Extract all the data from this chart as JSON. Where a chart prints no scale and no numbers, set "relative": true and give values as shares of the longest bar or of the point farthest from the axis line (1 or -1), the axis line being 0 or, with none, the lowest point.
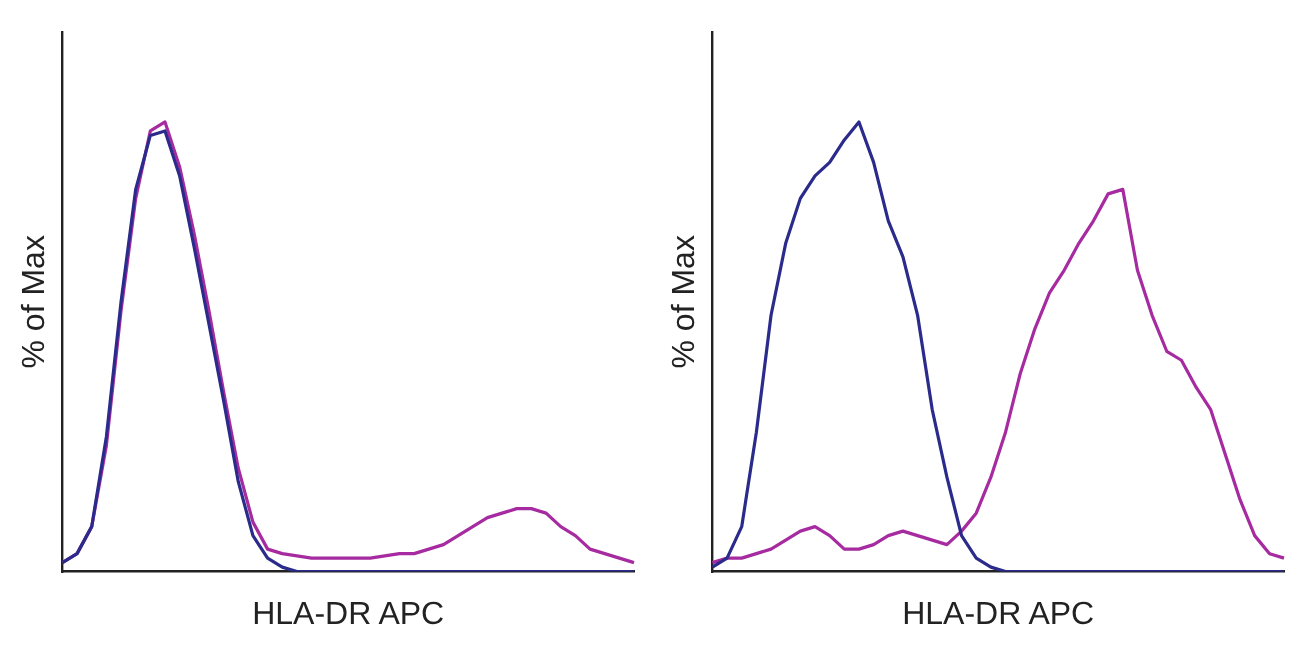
{
  "chart_data": [
    {
      "type": "line",
      "relative": true,
      "ylabel": "% of Max",
      "xlabel": "HLA-DR APC",
      "legend": false,
      "grid": false,
      "marker": "none",
      "tick_labels": false,
      "categories": [
        null,
        null,
        null,
        null,
        null,
        null,
        null,
        null,
        null,
        null,
        null,
        null,
        null,
        null,
        null,
        null,
        null,
        null,
        null,
        null,
        null,
        null,
        null,
        null,
        null,
        null,
        null,
        null,
        null,
        null,
        null,
        null,
        null,
        null,
        null,
        null,
        null,
        null,
        null,
        null
      ],
      "series": [
        {
          "color": "#2b2b8c",
          "values": [
            0.02,
            0.04,
            0.1,
            0.3,
            0.6,
            0.85,
            0.97,
            0.98,
            0.88,
            0.72,
            0.55,
            0.38,
            0.2,
            0.08,
            0.03,
            0.01,
            0,
            0,
            0,
            0,
            0,
            0,
            0,
            0,
            0,
            0,
            0,
            0,
            0,
            0,
            0,
            0,
            0,
            0,
            0,
            0,
            0,
            0,
            0,
            0
          ]
        },
        {
          "color": "#a62aa0",
          "values": [
            0.02,
            0.04,
            0.1,
            0.28,
            0.58,
            0.83,
            0.98,
            1.0,
            0.9,
            0.75,
            0.58,
            0.4,
            0.23,
            0.11,
            0.05,
            0.04,
            0.035,
            0.03,
            0.03,
            0.03,
            0.03,
            0.03,
            0.035,
            0.04,
            0.04,
            0.05,
            0.06,
            0.08,
            0.1,
            0.12,
            0.13,
            0.14,
            0.14,
            0.13,
            0.1,
            0.08,
            0.05,
            0.04,
            0.03,
            0.02
          ]
        }
      ]
    },
    {
      "type": "line",
      "relative": true,
      "ylabel": "% of Max",
      "xlabel": "HLA-DR APC",
      "legend": false,
      "grid": false,
      "marker": "none",
      "tick_labels": false,
      "categories": [
        null,
        null,
        null,
        null,
        null,
        null,
        null,
        null,
        null,
        null,
        null,
        null,
        null,
        null,
        null,
        null,
        null,
        null,
        null,
        null,
        null,
        null,
        null,
        null,
        null,
        null,
        null,
        null,
        null,
        null,
        null,
        null,
        null,
        null,
        null,
        null,
        null,
        null,
        null,
        null
      ],
      "series": [
        {
          "color": "#2b2b8c",
          "values": [
            0.01,
            0.03,
            0.1,
            0.31,
            0.57,
            0.73,
            0.83,
            0.88,
            0.91,
            0.96,
            1.0,
            0.91,
            0.78,
            0.7,
            0.57,
            0.36,
            0.21,
            0.08,
            0.03,
            0.01,
            0,
            0,
            0,
            0,
            0,
            0,
            0,
            0,
            0,
            0,
            0,
            0,
            0,
            0,
            0,
            0,
            0,
            0,
            0,
            0
          ]
        },
        {
          "color": "#a62aa0",
          "values": [
            0.02,
            0.03,
            0.03,
            0.04,
            0.05,
            0.07,
            0.09,
            0.1,
            0.08,
            0.05,
            0.05,
            0.06,
            0.08,
            0.09,
            0.08,
            0.07,
            0.06,
            0.09,
            0.13,
            0.21,
            0.31,
            0.44,
            0.54,
            0.62,
            0.67,
            0.73,
            0.78,
            0.84,
            0.85,
            0.67,
            0.57,
            0.49,
            0.47,
            0.41,
            0.36,
            0.26,
            0.16,
            0.08,
            0.04,
            0.03
          ]
        }
      ]
    }
  ]
}
